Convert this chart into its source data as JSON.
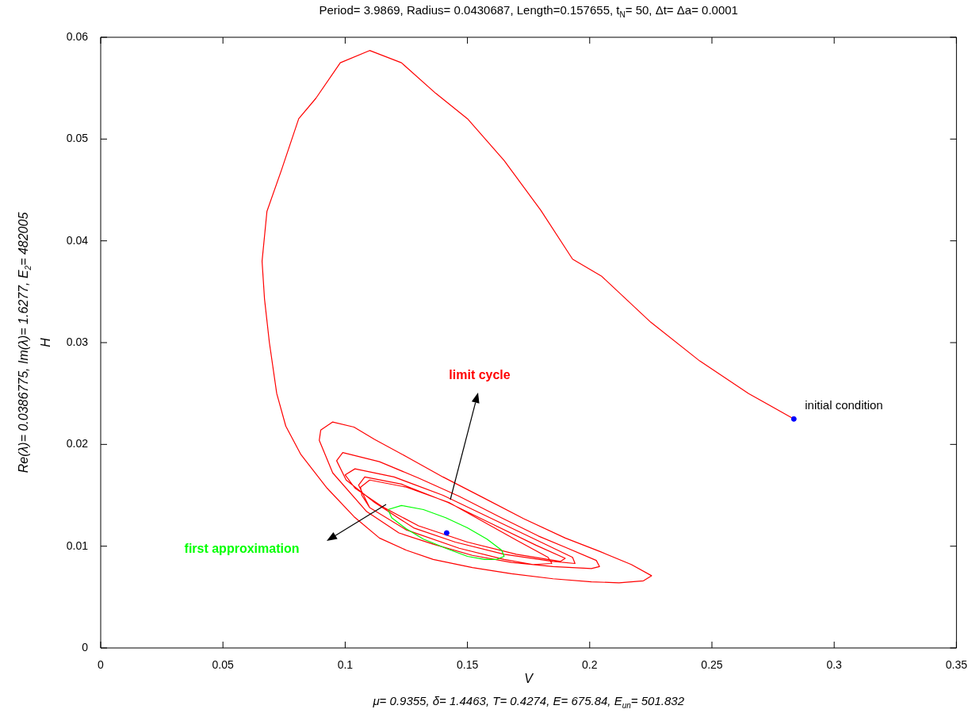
{
  "chart_data": {
    "type": "line",
    "title": "Period= 3.9869, Radius= 0.0430687, Length=0.157655, t$_{N}$= 50, Δt= Δa= 0.0001",
    "xlabel": "V",
    "ylabel": "Re(λ)= 0.0386775, Im(λ)= 1.6277, E$_{2}$= 482005\nH",
    "xlim": [
      0,
      0.35
    ],
    "xticks": [
      0,
      0.05,
      0.1,
      0.15,
      0.2,
      0.25,
      0.3,
      0.35
    ],
    "ylim": [
      0,
      0.06
    ],
    "yticks": [
      0,
      0.01,
      0.02,
      0.03,
      0.04,
      0.05,
      0.06
    ],
    "grid": false,
    "legend": false,
    "marker": "none",
    "line_style": "solid",
    "series": [
      {
        "type": "line",
        "color": "#ff0000",
        "x": [
          0.2835,
          0.265,
          0.245,
          0.225,
          0.205,
          0.193,
          0.18,
          0.165,
          0.15,
          0.137,
          0.123,
          0.11,
          0.098,
          0.088,
          0.081,
          0.074,
          0.068,
          0.066,
          0.067,
          0.069,
          0.072,
          0.0757,
          0.0819,
          0.0926,
          0.1036,
          0.114,
          0.125,
          0.136,
          0.152,
          0.168,
          0.185,
          0.2007,
          0.212,
          0.222,
          0.2253,
          0.217,
          0.204,
          0.19,
          0.173,
          0.157,
          0.14,
          0.125,
          0.112,
          0.1036,
          0.0949,
          0.09,
          0.0894,
          0.0949,
          0.1088,
          0.122,
          0.136,
          0.152,
          0.168,
          0.185,
          0.2007,
          0.204,
          0.2027,
          0.19,
          0.179,
          0.163,
          0.1466,
          0.13,
          0.114,
          0.099,
          0.0965,
          0.1004,
          0.112,
          0.128,
          0.145,
          0.165,
          0.185,
          0.194,
          0.193,
          0.18,
          0.16,
          0.14,
          0.12,
          0.104,
          0.1,
          0.104,
          0.115,
          0.13,
          0.15,
          0.17,
          0.188,
          0.19,
          0.178,
          0.16,
          0.142,
          0.123,
          0.108,
          0.1055,
          0.11,
          0.125,
          0.1466,
          0.165,
          0.1768,
          0.1845,
          0.183,
          0.17,
          0.1424,
          0.125,
          0.11,
          0.1063,
          0.1068,
          0.11
        ],
        "values": [
          0.0225,
          0.025,
          0.0282,
          0.032,
          0.0365,
          0.0382,
          0.043,
          0.0479,
          0.052,
          0.0545,
          0.0575,
          0.0587,
          0.0575,
          0.054,
          0.052,
          0.047,
          0.0429,
          0.038,
          0.0343,
          0.03,
          0.025,
          0.0218,
          0.019,
          0.0157,
          0.0129,
          0.0108,
          0.0096,
          0.0087,
          0.0079,
          0.0073,
          0.0068,
          0.0065,
          0.0064,
          0.0066,
          0.0071,
          0.0082,
          0.0095,
          0.0108,
          0.0127,
          0.0147,
          0.0168,
          0.0188,
          0.0205,
          0.0217,
          0.0222,
          0.0214,
          0.0204,
          0.0172,
          0.0134,
          0.0113,
          0.0102,
          0.0091,
          0.0084,
          0.008,
          0.0078,
          0.008,
          0.0086,
          0.0099,
          0.011,
          0.0129,
          0.0149,
          0.0167,
          0.0183,
          0.0192,
          0.0184,
          0.0165,
          0.0143,
          0.0118,
          0.0104,
          0.0092,
          0.0085,
          0.0083,
          0.0089,
          0.0104,
          0.0127,
          0.015,
          0.0168,
          0.0176,
          0.017,
          0.0157,
          0.0139,
          0.012,
          0.0104,
          0.0092,
          0.0085,
          0.0088,
          0.0101,
          0.0122,
          0.0143,
          0.0161,
          0.0168,
          0.016,
          0.0138,
          0.0116,
          0.0098,
          0.0087,
          0.0082,
          0.0083,
          0.0089,
          0.0106,
          0.0143,
          0.0158,
          0.0165,
          0.0158,
          0.015,
          0.0138
        ]
      },
      {
        "type": "line",
        "color": "#00ff00",
        "x": [
          0.1175,
          0.123,
          0.132,
          0.1411,
          0.15,
          0.158,
          0.164,
          0.165,
          0.162,
          0.157,
          0.15,
          0.1411,
          0.132,
          0.125,
          0.119,
          0.1177
        ],
        "values": [
          0.0136,
          0.014,
          0.0136,
          0.0128,
          0.0118,
          0.0107,
          0.0096,
          0.009,
          0.0087,
          0.0087,
          0.009,
          0.0098,
          0.0107,
          0.0117,
          0.0128,
          0.0135
        ]
      },
      {
        "type": "scatter",
        "color": "#0000ff",
        "marker": "circle",
        "x": [
          0.2835,
          0.1415
        ],
        "values": [
          0.0225,
          0.0113
        ]
      }
    ],
    "annotations": [
      "limit cycle",
      "first approximation",
      {
        "text": "initial condition",
        "x": 0.2835,
        "y": 0.0225
      },
      "μ= 0.9355, δ= 1.4463, T= 0.4274, E= 675.84, E$_{un}$= 501.832"
    ]
  }
}
